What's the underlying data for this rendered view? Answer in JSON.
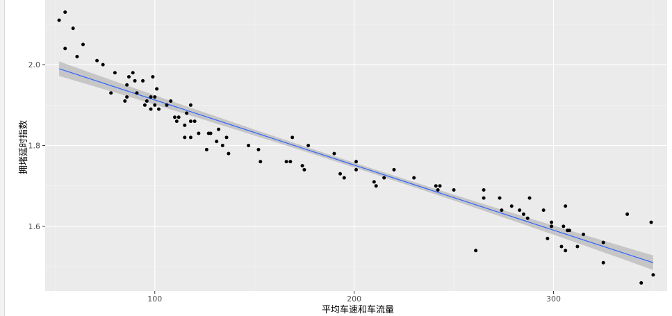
{
  "chart_data": {
    "type": "scatter",
    "title": "",
    "xlabel": "平均车速和车流量",
    "ylabel": "拥堵延时指数",
    "xlim": [
      45,
      357
    ],
    "ylim": [
      1.44,
      2.16
    ],
    "x_ticks": [
      100,
      200,
      300
    ],
    "x_tick_labels": [
      "100",
      "200",
      "300"
    ],
    "y_ticks": [
      1.6,
      1.8,
      2.0
    ],
    "y_tick_labels": [
      "1.6",
      "1.8",
      "2.0"
    ],
    "grid": true,
    "legend": "none",
    "colors": {
      "panel": "#ebebeb",
      "grid": "#ffffff",
      "points": "#000000",
      "fit_line": "#3366ff",
      "band": "#bfbfbf"
    },
    "points": [
      [
        52,
        2.11
      ],
      [
        55,
        2.13
      ],
      [
        55,
        2.04
      ],
      [
        59,
        2.09
      ],
      [
        61,
        2.02
      ],
      [
        64,
        2.05
      ],
      [
        71,
        2.01
      ],
      [
        74,
        2.0
      ],
      [
        78,
        1.93
      ],
      [
        80,
        1.98
      ],
      [
        85,
        1.91
      ],
      [
        86,
        1.92
      ],
      [
        86,
        1.95
      ],
      [
        87,
        1.97
      ],
      [
        89,
        1.98
      ],
      [
        90,
        1.96
      ],
      [
        91,
        1.93
      ],
      [
        94,
        1.96
      ],
      [
        95,
        1.9
      ],
      [
        96,
        1.91
      ],
      [
        98,
        1.92
      ],
      [
        98,
        1.89
      ],
      [
        99,
        1.97
      ],
      [
        100,
        1.92
      ],
      [
        100,
        1.9
      ],
      [
        101,
        1.94
      ],
      [
        102,
        1.89
      ],
      [
        106,
        1.9
      ],
      [
        108,
        1.91
      ],
      [
        110,
        1.87
      ],
      [
        111,
        1.86
      ],
      [
        112,
        1.87
      ],
      [
        115,
        1.85
      ],
      [
        115,
        1.82
      ],
      [
        116,
        1.88
      ],
      [
        118,
        1.82
      ],
      [
        118,
        1.86
      ],
      [
        118,
        1.9
      ],
      [
        120,
        1.86
      ],
      [
        122,
        1.83
      ],
      [
        126,
        1.79
      ],
      [
        127,
        1.83
      ],
      [
        128,
        1.83
      ],
      [
        131,
        1.81
      ],
      [
        132,
        1.84
      ],
      [
        134,
        1.8
      ],
      [
        136,
        1.82
      ],
      [
        137,
        1.78
      ],
      [
        147,
        1.8
      ],
      [
        152,
        1.79
      ],
      [
        153,
        1.76
      ],
      [
        166,
        1.76
      ],
      [
        168,
        1.76
      ],
      [
        169,
        1.82
      ],
      [
        174,
        1.75
      ],
      [
        175,
        1.74
      ],
      [
        177,
        1.8
      ],
      [
        190,
        1.78
      ],
      [
        193,
        1.73
      ],
      [
        195,
        1.72
      ],
      [
        201,
        1.74
      ],
      [
        201,
        1.76
      ],
      [
        210,
        1.71
      ],
      [
        211,
        1.7
      ],
      [
        215,
        1.72
      ],
      [
        220,
        1.74
      ],
      [
        230,
        1.72
      ],
      [
        241,
        1.7
      ],
      [
        242,
        1.69
      ],
      [
        243,
        1.7
      ],
      [
        250,
        1.69
      ],
      [
        261,
        1.54
      ],
      [
        265,
        1.69
      ],
      [
        265,
        1.67
      ],
      [
        273,
        1.67
      ],
      [
        274,
        1.64
      ],
      [
        279,
        1.65
      ],
      [
        283,
        1.64
      ],
      [
        285,
        1.63
      ],
      [
        287,
        1.62
      ],
      [
        288,
        1.67
      ],
      [
        295,
        1.64
      ],
      [
        297,
        1.57
      ],
      [
        299,
        1.61
      ],
      [
        299,
        1.6
      ],
      [
        304,
        1.55
      ],
      [
        305,
        1.6
      ],
      [
        306,
        1.54
      ],
      [
        306,
        1.65
      ],
      [
        307,
        1.59
      ],
      [
        308,
        1.59
      ],
      [
        312,
        1.55
      ],
      [
        315,
        1.58
      ],
      [
        325,
        1.51
      ],
      [
        325,
        1.56
      ],
      [
        337,
        1.63
      ],
      [
        344,
        1.46
      ],
      [
        349,
        1.61
      ],
      [
        350,
        1.48
      ]
    ],
    "fit": {
      "x_start": 52,
      "y_start": 1.99,
      "x_end": 350,
      "y_end": 1.51,
      "band_halfwidth_end": 0.018,
      "band_halfwidth_mid": 0.006
    }
  }
}
